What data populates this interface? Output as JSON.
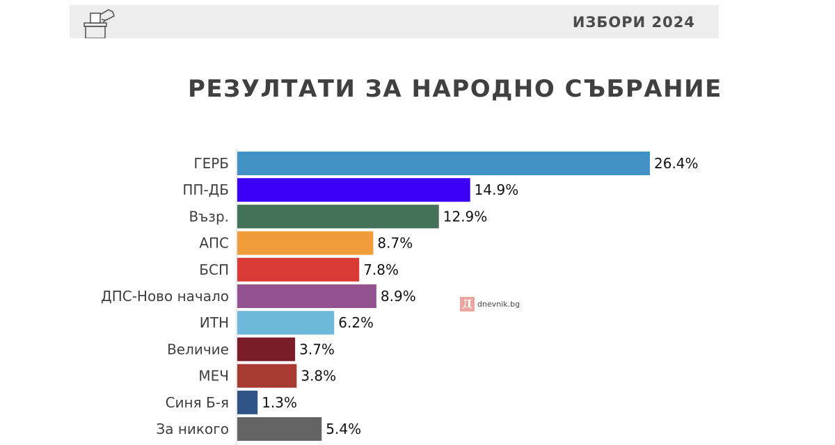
{
  "header": {
    "label": "ИЗБОРИ 2024",
    "icon": "ballot-box-icon"
  },
  "watermark": {
    "logo_letter": "Д",
    "text": "dnevnik.bg"
  },
  "chart_data": {
    "type": "bar",
    "orientation": "horizontal",
    "title": "РЕЗУЛТАТИ ЗА НАРОДНО СЪБРАНИЕ",
    "xlabel": "",
    "ylabel": "",
    "xlim": [
      0,
      27
    ],
    "grid": false,
    "legend": "none",
    "categories": [
      "ГЕРБ",
      "ПП-ДБ",
      "Възр.",
      "АПС",
      "БСП",
      "ДПС-Ново начало",
      "ИТН",
      "Величие",
      "МЕЧ",
      "Синя Б-я",
      "За никого"
    ],
    "values": [
      26.4,
      14.9,
      12.9,
      8.7,
      7.8,
      8.9,
      6.2,
      3.7,
      3.8,
      1.3,
      5.4
    ],
    "value_labels": [
      "26.4%",
      "14.9%",
      "12.9%",
      "8.7%",
      "7.8%",
      "8.9%",
      "6.2%",
      "3.7%",
      "3.8%",
      "1.3%",
      "5.4%"
    ],
    "colors": [
      "#4292c6",
      "#3b00f5",
      "#437258",
      "#f09c3a",
      "#d93a35",
      "#91528f",
      "#6db7da",
      "#7a1c2a",
      "#a73a31",
      "#2f5385",
      "#636363"
    ]
  }
}
